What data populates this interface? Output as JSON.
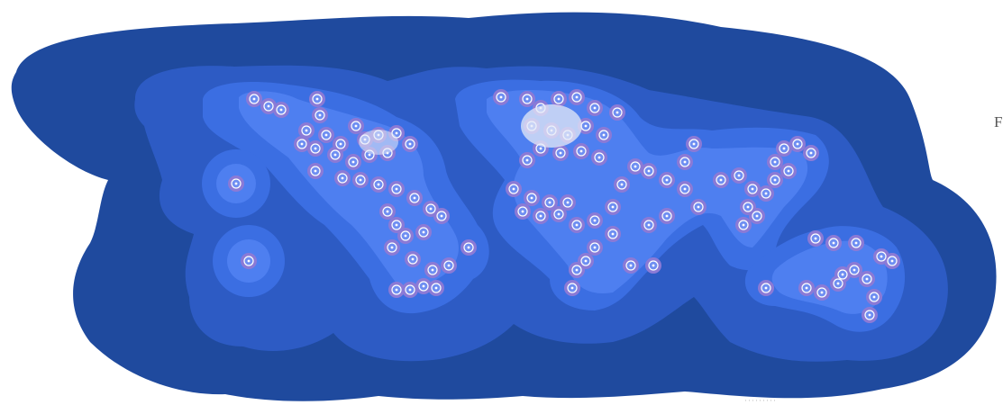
{
  "map": {
    "edge_label": "F",
    "corner_mark": "·········",
    "colors": {
      "background": "#ffffff",
      "band_outer": "#1f4a9e",
      "band_mid": "#2d5bc4",
      "band_inner": "#3b6ee2",
      "band_core": "#4e7ff0",
      "ring_lavender": "#8b7ad6",
      "node_fill": "#6f8ff2",
      "node_center": "#ffffff",
      "dense_core": "#e6e9f7"
    }
  }
}
